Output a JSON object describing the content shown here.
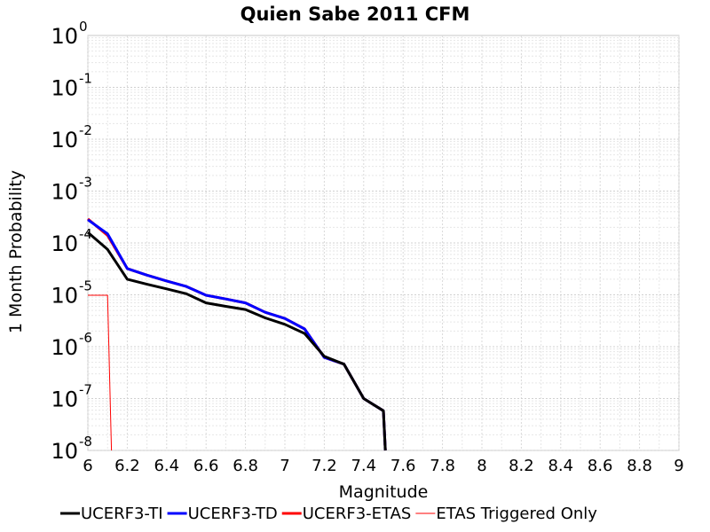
{
  "chart_data": {
    "type": "line",
    "title": "Quien Sabe 2011 CFM",
    "xlabel": "Magnitude",
    "ylabel": "1 Month Probability",
    "xlim": [
      6,
      9
    ],
    "ylim": [
      1e-08,
      1
    ],
    "yscale": "log",
    "x_ticks": [
      "6",
      "6.2",
      "6.4",
      "6.6",
      "6.8",
      "7",
      "7.2",
      "7.4",
      "7.6",
      "7.8",
      "8",
      "8.2",
      "8.4",
      "8.6",
      "8.8",
      "9"
    ],
    "y_ticks": [
      {
        "base": "10",
        "exp": "0",
        "value": 1
      },
      {
        "base": "10",
        "exp": "-1",
        "value": 0.1
      },
      {
        "base": "10",
        "exp": "-2",
        "value": 0.01
      },
      {
        "base": "10",
        "exp": "-3",
        "value": 0.001
      },
      {
        "base": "10",
        "exp": "-4",
        "value": 0.0001
      },
      {
        "base": "10",
        "exp": "-5",
        "value": 1e-05
      },
      {
        "base": "10",
        "exp": "-6",
        "value": 1e-06
      },
      {
        "base": "10",
        "exp": "-7",
        "value": 1e-07
      },
      {
        "base": "10",
        "exp": "-8",
        "value": 1e-08
      }
    ],
    "grid": true,
    "legend_position": "bottom",
    "series": [
      {
        "name": "UCERF3-TI",
        "color": "#000000",
        "line_width": 3,
        "x": [
          6.0,
          6.1,
          6.2,
          6.3,
          6.4,
          6.5,
          6.6,
          6.7,
          6.8,
          6.9,
          7.0,
          7.1,
          7.2,
          7.3,
          7.4,
          7.5,
          7.51
        ],
        "y": [
          0.00016,
          7.5e-05,
          2e-05,
          1.6e-05,
          1.3e-05,
          1.05e-05,
          7e-06,
          6e-06,
          5.2e-06,
          3.6e-06,
          2.7e-06,
          1.8e-06,
          6.5e-07,
          4.6e-07,
          1e-07,
          5.8e-08,
          1e-08
        ]
      },
      {
        "name": "UCERF3-TD",
        "color": "#0000ff",
        "line_width": 3,
        "x": [
          6.0,
          6.1,
          6.2,
          6.3,
          6.4,
          6.5,
          6.6,
          6.7,
          6.8,
          6.9,
          7.0,
          7.1,
          7.2,
          7.3,
          7.4,
          7.5,
          7.51
        ],
        "y": [
          0.00028,
          0.00015,
          3.2e-05,
          2.4e-05,
          1.85e-05,
          1.45e-05,
          9.8e-06,
          8.3e-06,
          7e-06,
          4.6e-06,
          3.5e-06,
          2.2e-06,
          6.2e-07,
          4.6e-07,
          1e-07,
          5.8e-08,
          1e-08
        ]
      },
      {
        "name": "UCERF3-ETAS",
        "color": "#ff0000",
        "line_width": 3,
        "x": [
          6.0,
          6.1,
          6.2,
          6.3,
          6.4,
          6.5,
          6.6,
          6.7,
          6.8,
          6.9,
          7.0,
          7.1,
          7.2,
          7.3,
          7.4,
          7.5,
          7.51
        ],
        "y": [
          0.00029,
          0.00014,
          3.2e-05,
          2.4e-05,
          1.85e-05,
          1.45e-05,
          9.8e-06,
          8.3e-06,
          7e-06,
          4.6e-06,
          3.5e-06,
          2.2e-06,
          6.2e-07,
          4.6e-07,
          1e-07,
          5.8e-08,
          1e-08
        ]
      },
      {
        "name": "ETAS Triggered Only",
        "color": "#ff0000",
        "line_width": 1,
        "x": [
          6.0,
          6.1,
          6.12
        ],
        "y": [
          9.8e-06,
          9.8e-06,
          1e-08
        ]
      }
    ]
  }
}
